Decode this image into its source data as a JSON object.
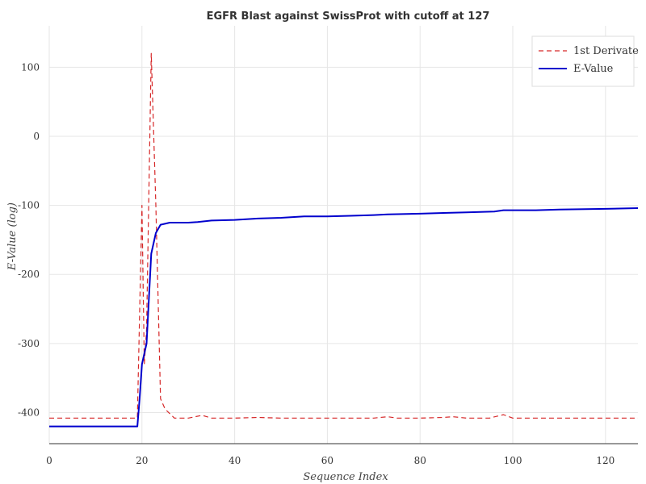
{
  "chart_data": {
    "type": "line",
    "title": "EGFR Blast against SwissProt with cutoff at 127",
    "xlabel": "Sequence Index",
    "ylabel": "E-Value (log)",
    "xlim": [
      0,
      127
    ],
    "ylim": [
      -445,
      160
    ],
    "x_ticks": [
      0,
      20,
      40,
      60,
      80,
      100,
      120
    ],
    "y_ticks": [
      100,
      0,
      -100,
      -200,
      -300,
      -400
    ],
    "grid": true,
    "legend_position": "top-right",
    "series": [
      {
        "name": "1st Derivate",
        "color": "#d62728",
        "style": "dashed",
        "points": [
          [
            0,
            -408
          ],
          [
            19,
            -408
          ],
          [
            20,
            -100
          ],
          [
            20.5,
            -330
          ],
          [
            21,
            -280
          ],
          [
            22,
            120
          ],
          [
            23,
            -100
          ],
          [
            24,
            -380
          ],
          [
            25,
            -395
          ],
          [
            27,
            -408
          ],
          [
            30,
            -408
          ],
          [
            33,
            -404
          ],
          [
            35,
            -408
          ],
          [
            40,
            -408
          ],
          [
            45,
            -407
          ],
          [
            50,
            -408
          ],
          [
            55,
            -408
          ],
          [
            60,
            -408
          ],
          [
            65,
            -408
          ],
          [
            70,
            -408
          ],
          [
            73,
            -406
          ],
          [
            75,
            -408
          ],
          [
            80,
            -408
          ],
          [
            85,
            -407
          ],
          [
            87,
            -406
          ],
          [
            90,
            -408
          ],
          [
            95,
            -408
          ],
          [
            98,
            -403
          ],
          [
            100,
            -408
          ],
          [
            105,
            -408
          ],
          [
            110,
            -408
          ],
          [
            115,
            -408
          ],
          [
            120,
            -408
          ],
          [
            125,
            -408
          ],
          [
            127,
            -408
          ]
        ]
      },
      {
        "name": "E-Value",
        "color": "#0000cd",
        "style": "solid",
        "points": [
          [
            0,
            -420
          ],
          [
            19,
            -420
          ],
          [
            19.5,
            -380
          ],
          [
            20,
            -330
          ],
          [
            21,
            -300
          ],
          [
            22,
            -170
          ],
          [
            23,
            -140
          ],
          [
            24,
            -128
          ],
          [
            26,
            -125
          ],
          [
            30,
            -125
          ],
          [
            32,
            -124
          ],
          [
            35,
            -122
          ],
          [
            40,
            -121
          ],
          [
            45,
            -119
          ],
          [
            50,
            -118
          ],
          [
            55,
            -116
          ],
          [
            60,
            -116
          ],
          [
            65,
            -115
          ],
          [
            70,
            -114
          ],
          [
            73,
            -113
          ],
          [
            80,
            -112
          ],
          [
            85,
            -111
          ],
          [
            90,
            -110
          ],
          [
            96,
            -109
          ],
          [
            98,
            -107
          ],
          [
            105,
            -107
          ],
          [
            110,
            -106
          ],
          [
            120,
            -105
          ],
          [
            127,
            -104
          ]
        ]
      }
    ]
  }
}
